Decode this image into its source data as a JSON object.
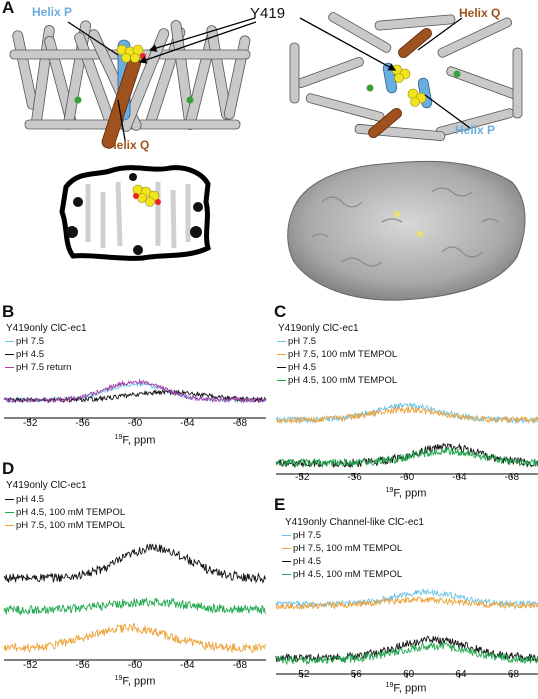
{
  "panel_a": {
    "label": "A",
    "callout_residue": "Y419",
    "helix_p_label": "Helix P",
    "helix_q_label": "Helix Q",
    "helix_p_color": "#6aaee0",
    "helix_q_color": "#a0521e",
    "residue_color": "#f2e41c"
  },
  "panel_b": {
    "label": "B",
    "title": "Y419only ClC-ec1",
    "legend": [
      "pH 7.5",
      "pH 4.5",
      "pH 7.5 return"
    ],
    "colors": [
      "#6cc4e6",
      "#111111",
      "#a73fa7"
    ]
  },
  "panel_c": {
    "label": "C",
    "title": "Y419only ClC-ec1",
    "legend": [
      "pH 7.5",
      "pH 7.5, 100 mM TEMPOL",
      "pH 4.5",
      "pH 4.5, 100 mM TEMPOL"
    ],
    "colors": [
      "#6cc4e6",
      "#eea23a",
      "#111111",
      "#22a84e"
    ]
  },
  "panel_d": {
    "label": "D",
    "title": "Y419only ClC-ec1",
    "legend": [
      "pH 4.5",
      "pH 4.5, 100 mM TEMPOL",
      "pH 7.5, 100 mM TEMPOL"
    ],
    "colors": [
      "#111111",
      "#22a84e",
      "#eea23a"
    ]
  },
  "panel_e": {
    "label": "E",
    "title": "Y419only Channel-like ClC-ec1",
    "legend": [
      "pH 7.5",
      "pH 7.5, 100 mM TEMPOL",
      "pH 4.5",
      "pH 4.5, 100 mM TEMPOL"
    ],
    "colors": [
      "#6cc4e6",
      "#eea23a",
      "#111111",
      "#22a84e"
    ]
  },
  "axis": {
    "ticks": [
      "-52",
      "-56",
      "-60",
      "-64",
      "-68"
    ],
    "tick_values": [
      -52,
      -56,
      -60,
      -64,
      -68
    ],
    "label_sup": "19",
    "label_text": "F, ppm"
  },
  "chart_data": [
    {
      "panel": "B",
      "type": "line",
      "xlim": [
        -50,
        -70
      ],
      "reversed_x": true,
      "xlabel": "19F, ppm",
      "series": [
        {
          "name": "pH 7.5",
          "peak_x": -60.0
        },
        {
          "name": "pH 4.5",
          "peak_x": -62.5
        },
        {
          "name": "pH 7.5 return",
          "peak_x": -60.0
        }
      ]
    },
    {
      "panel": "C",
      "type": "line",
      "xlim": [
        -50,
        -70
      ],
      "reversed_x": true,
      "xlabel": "19F, ppm",
      "series": [
        {
          "name": "pH 7.5",
          "peak_x": -60.0
        },
        {
          "name": "pH 7.5, 100 mM TEMPOL",
          "peak_x": -60.0
        },
        {
          "name": "pH 4.5",
          "peak_x": -63.0
        },
        {
          "name": "pH 4.5, 100 mM TEMPOL",
          "peak_x": -63.0
        }
      ]
    },
    {
      "panel": "D",
      "type": "line",
      "xlim": [
        -50,
        -70
      ],
      "reversed_x": true,
      "xlabel": "19F, ppm",
      "series": [
        {
          "name": "pH 4.5",
          "peak_x": -61.5
        },
        {
          "name": "pH 4.5, 100 mM TEMPOL",
          "peak_x": -61.0
        },
        {
          "name": "pH 7.5, 100 mM TEMPOL",
          "peak_x": -59.5
        }
      ]
    },
    {
      "panel": "E",
      "type": "line",
      "xlim": [
        -50,
        -70
      ],
      "reversed_x": true,
      "xlabel": "19F, ppm",
      "series": [
        {
          "name": "pH 7.5",
          "peak_x": -61.5
        },
        {
          "name": "pH 7.5, 100 mM TEMPOL",
          "peak_x": -61.0
        },
        {
          "name": "pH 4.5",
          "peak_x": -62.0
        },
        {
          "name": "pH 4.5, 100 mM TEMPOL",
          "peak_x": -62.0
        }
      ]
    }
  ]
}
